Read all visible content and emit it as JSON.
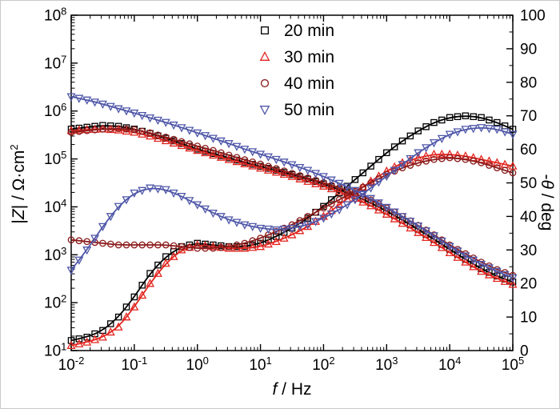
{
  "figure": {
    "xlabel": {
      "italic": "f",
      "rest": " / Hz"
    },
    "ylabel_left": {
      "pre": "|",
      "italic": "Z",
      "mid": "| / Ω·cm",
      "sup": "2"
    },
    "ylabel_right": {
      "pre": "-",
      "italic": "θ",
      "rest": " / deg"
    }
  },
  "chart_data": {
    "type": "line",
    "title": "",
    "xlabel": "f / Hz",
    "ylabel_left": "|Z| / Ω·cm2 (log scale)",
    "ylabel_right": "-θ / deg",
    "x_scale": "log",
    "y_left_scale": "log",
    "x_log_range": [
      -2,
      5
    ],
    "y_left_log_range": [
      1,
      8
    ],
    "y_right_range": [
      0,
      100
    ],
    "y_right_tick_step": 10,
    "grid": false,
    "legend_position": "top-center",
    "log_f": [
      -2,
      -1.75,
      -1.5,
      -1.25,
      -1,
      -0.75,
      -0.5,
      -0.25,
      0,
      0.25,
      0.5,
      0.75,
      1,
      1.25,
      1.5,
      1.75,
      2,
      2.25,
      2.5,
      2.75,
      3,
      3.25,
      3.5,
      3.75,
      4,
      4.25,
      4.5,
      4.75,
      5
    ],
    "series": [
      {
        "name": "20 min",
        "marker": "square",
        "color": "#000000",
        "impedance_ohm_cm2": [
          420000,
          460000,
          500000,
          480000,
          420000,
          340000,
          270000,
          210000,
          160000,
          130000,
          105000,
          85000,
          70000,
          58000,
          47000,
          38000,
          30000,
          23000,
          17000,
          12000,
          8200,
          5300,
          3400,
          2100,
          1300,
          800,
          510,
          360,
          270
        ],
        "neg_phase_deg": [
          3,
          4,
          6,
          10,
          16,
          23,
          28,
          31,
          32,
          31.5,
          31,
          31,
          32,
          34,
          36.5,
          39.5,
          43,
          47,
          51,
          55,
          59,
          62.5,
          65.5,
          68,
          69.5,
          70,
          69.5,
          68,
          66
        ]
      },
      {
        "name": "30 min",
        "marker": "triangle-up",
        "color": "#e2251f",
        "impedance_ohm_cm2": [
          390000,
          410000,
          420000,
          400000,
          360000,
          300000,
          240000,
          190000,
          150000,
          120000,
          97000,
          79000,
          64000,
          53000,
          43000,
          34000,
          27000,
          21000,
          15000,
          10500,
          7000,
          4500,
          2900,
          1800,
          1100,
          700,
          450,
          320,
          240
        ],
        "neg_phase_deg": [
          1.5,
          2.5,
          4,
          7,
          13,
          20,
          26,
          30,
          31.5,
          31,
          30.5,
          30.5,
          31,
          32.5,
          34.5,
          37,
          40,
          43.5,
          47,
          50.5,
          53.5,
          56,
          57.5,
          58.5,
          58.5,
          58,
          57,
          56,
          55
        ]
      },
      {
        "name": "40 min",
        "marker": "circle",
        "color": "#8b1a1a",
        "impedance_ohm_cm2": [
          360000,
          390000,
          420000,
          430000,
          410000,
          350000,
          285000,
          230000,
          185000,
          150000,
          120000,
          96000,
          78000,
          63000,
          50000,
          40000,
          32000,
          25000,
          19000,
          14000,
          9500,
          6300,
          4100,
          2600,
          1600,
          1050,
          700,
          490,
          370
        ],
        "neg_phase_deg": [
          33,
          32.5,
          32,
          31.5,
          31.5,
          31.5,
          31.5,
          31,
          30.5,
          30.5,
          31,
          32,
          33.5,
          35.5,
          37.5,
          40,
          42.5,
          45,
          47.5,
          50,
          52.5,
          54.5,
          56,
          57,
          57.5,
          57,
          56,
          54.5,
          53
        ]
      },
      {
        "name": "50 min",
        "marker": "triangle-down",
        "color": "#4f57a8",
        "impedance_ohm_cm2": [
          2000000,
          1700000,
          1400000,
          1120000,
          910000,
          720000,
          580000,
          450000,
          350000,
          270000,
          210000,
          160000,
          126000,
          98000,
          76000,
          58000,
          43000,
          31000,
          22000,
          15000,
          9800,
          6300,
          4000,
          2500,
          1500,
          950,
          630,
          450,
          330
        ],
        "neg_phase_deg": [
          24,
          30,
          37,
          43,
          47,
          48.5,
          48,
          46,
          43.5,
          41,
          39,
          37.5,
          36.5,
          36,
          36.5,
          37.5,
          39.5,
          42,
          45,
          48.5,
          52,
          55.5,
          59,
          62,
          64.5,
          66,
          66.5,
          66,
          64.5
        ]
      }
    ]
  }
}
